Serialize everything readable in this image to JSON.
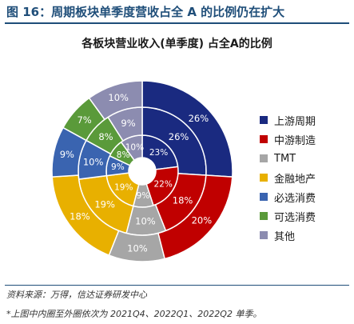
{
  "figure": {
    "title": "图 16：周期板块单季度营收占全 A 的比例仍在扩大",
    "source": "资料来源：万得，信达证券研发中心",
    "note": "*上图中内圈至外圈依次为 2021Q4、2022Q1、2022Q2 单季。"
  },
  "chart_data": {
    "type": "pie",
    "title": "各板块营业收入(单季度) 占全A的比例",
    "categories": [
      "上游周期",
      "中游制造",
      "TMT",
      "金融地产",
      "必选消费",
      "可选消费",
      "其他"
    ],
    "colors": [
      "#1a2a80",
      "#c00000",
      "#a6a6a6",
      "#e8b000",
      "#3a64b0",
      "#5a9a3a",
      "#8c8cb0"
    ],
    "series": [
      {
        "values": [
          23,
          22,
          9,
          19,
          9,
          8,
          10
        ],
        "labels": [
          "23%",
          "22%",
          "9%",
          "19%",
          "9%",
          "8%",
          "10%"
        ]
      },
      {
        "values": [
          26,
          18,
          10,
          19,
          10,
          8,
          9
        ],
        "labels": [
          "26%",
          "18%",
          "10%",
          "19%",
          "10%",
          "8%",
          "9%"
        ]
      },
      {
        "values": [
          26,
          20,
          10,
          18,
          9,
          7,
          10
        ],
        "labels": [
          "26%",
          "20%",
          "10%",
          "18%",
          "9%",
          "7%",
          "10%"
        ]
      }
    ]
  }
}
